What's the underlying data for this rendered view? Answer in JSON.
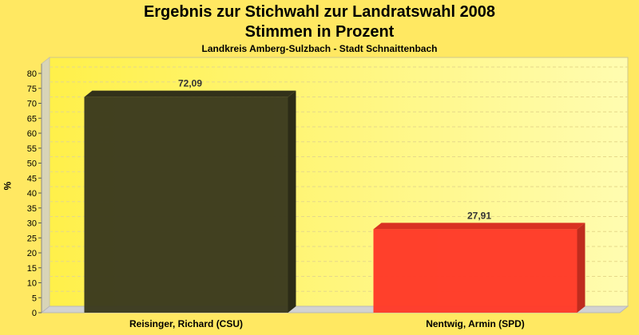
{
  "title_line1": "Ergebnis zur Stichwahl zur Landratswahl 2008",
  "title_line2": "Stimmen in Prozent",
  "subtitle": "Landkreis Amberg-Sulzbach - Stadt Schnaittenbach",
  "chart_data": {
    "type": "bar",
    "categories": [
      "Reisinger, Richard (CSU)",
      "Nentwig, Armin (SPD)"
    ],
    "values": [
      72.09,
      27.91
    ],
    "value_labels": [
      "72,09",
      "27,91"
    ],
    "colors": [
      "#3b3a1e",
      "#ff3a28"
    ],
    "ylabel": "%",
    "ylim": [
      0,
      80
    ],
    "yticks": [
      0,
      5,
      10,
      15,
      20,
      25,
      30,
      35,
      40,
      45,
      50,
      55,
      60,
      65,
      70,
      75,
      80
    ],
    "grid": true
  }
}
